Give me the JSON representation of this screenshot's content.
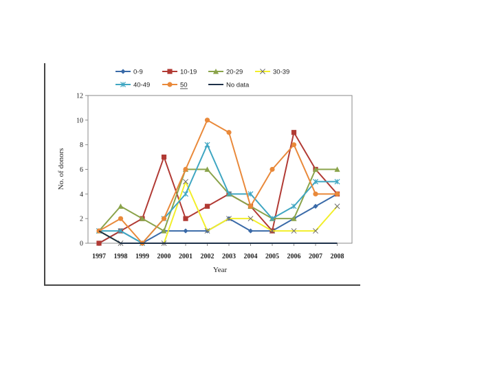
{
  "chart_data": {
    "type": "line",
    "title": "",
    "xlabel": "Year",
    "ylabel": "No. of donors",
    "ylim": [
      0,
      12
    ],
    "yticks": [
      "0",
      "2",
      "4",
      "6",
      "8",
      "10",
      "12"
    ],
    "categories": [
      "1997",
      "1998",
      "1999",
      "2000",
      "2001",
      "2002",
      "2003",
      "2004",
      "2005",
      "2006",
      "2007",
      "2008"
    ],
    "legend": {
      "placement": "top",
      "label_ge50": "50"
    },
    "series": [
      {
        "name": "0-9",
        "color": "#3a6aa8",
        "marker": "diamond",
        "values": [
          0,
          1,
          0,
          1,
          1,
          1,
          2,
          1,
          1,
          2,
          3,
          4
        ]
      },
      {
        "name": "10-19",
        "color": "#b13a34",
        "marker": "square",
        "values": [
          0,
          1,
          2,
          7,
          2,
          3,
          4,
          3,
          1,
          9,
          6,
          4
        ]
      },
      {
        "name": "20-29",
        "color": "#8aa34a",
        "marker": "triangle",
        "values": [
          1,
          3,
          2,
          1,
          6,
          6,
          4,
          3,
          2,
          2,
          6,
          6
        ]
      },
      {
        "name": "30-39",
        "color": "#f2ee2a",
        "marker": "x",
        "values": [
          1,
          0,
          0,
          0,
          5,
          1,
          2,
          2,
          1,
          1,
          1,
          3
        ]
      },
      {
        "name": "40-49",
        "color": "#3fa6c2",
        "marker": "asterisk",
        "values": [
          1,
          1,
          0,
          2,
          4,
          8,
          4,
          4,
          2,
          3,
          5,
          5
        ]
      },
      {
        "name": "≥50",
        "color": "#e9893a",
        "marker": "circle",
        "values": [
          1,
          2,
          0,
          2,
          6,
          10,
          9,
          3,
          6,
          8,
          4,
          4
        ]
      },
      {
        "name": "No data",
        "color": "#1d3048",
        "marker": "none",
        "values": [
          1,
          0,
          0,
          0,
          0,
          0,
          0,
          0,
          0,
          0,
          0,
          0
        ]
      }
    ]
  }
}
